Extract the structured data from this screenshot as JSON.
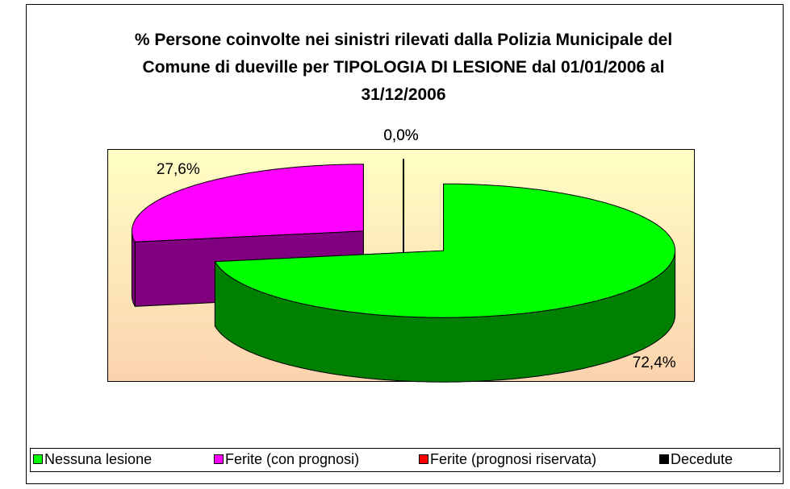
{
  "chart_data": {
    "type": "pie",
    "title": "% Persone coinvolte nei sinistri rilevati dalla Polizia Municipale del Comune di dueville per TIPOLOGIA DI LESIONE dal 01/01/2006 al 31/12/2006",
    "categories": [
      "Nessuna lesione",
      "Ferite (con prognosi)",
      "Ferite (prognosi riservata)",
      "Decedute"
    ],
    "values": [
      72.4,
      27.6,
      0,
      0
    ],
    "value_labels": [
      "72,4%",
      "27,6%",
      "0,0%",
      "0,0%"
    ],
    "colors": [
      "#00ff00",
      "#ff00ff",
      "#ff0000",
      "#000000"
    ],
    "legend": "bottom"
  }
}
